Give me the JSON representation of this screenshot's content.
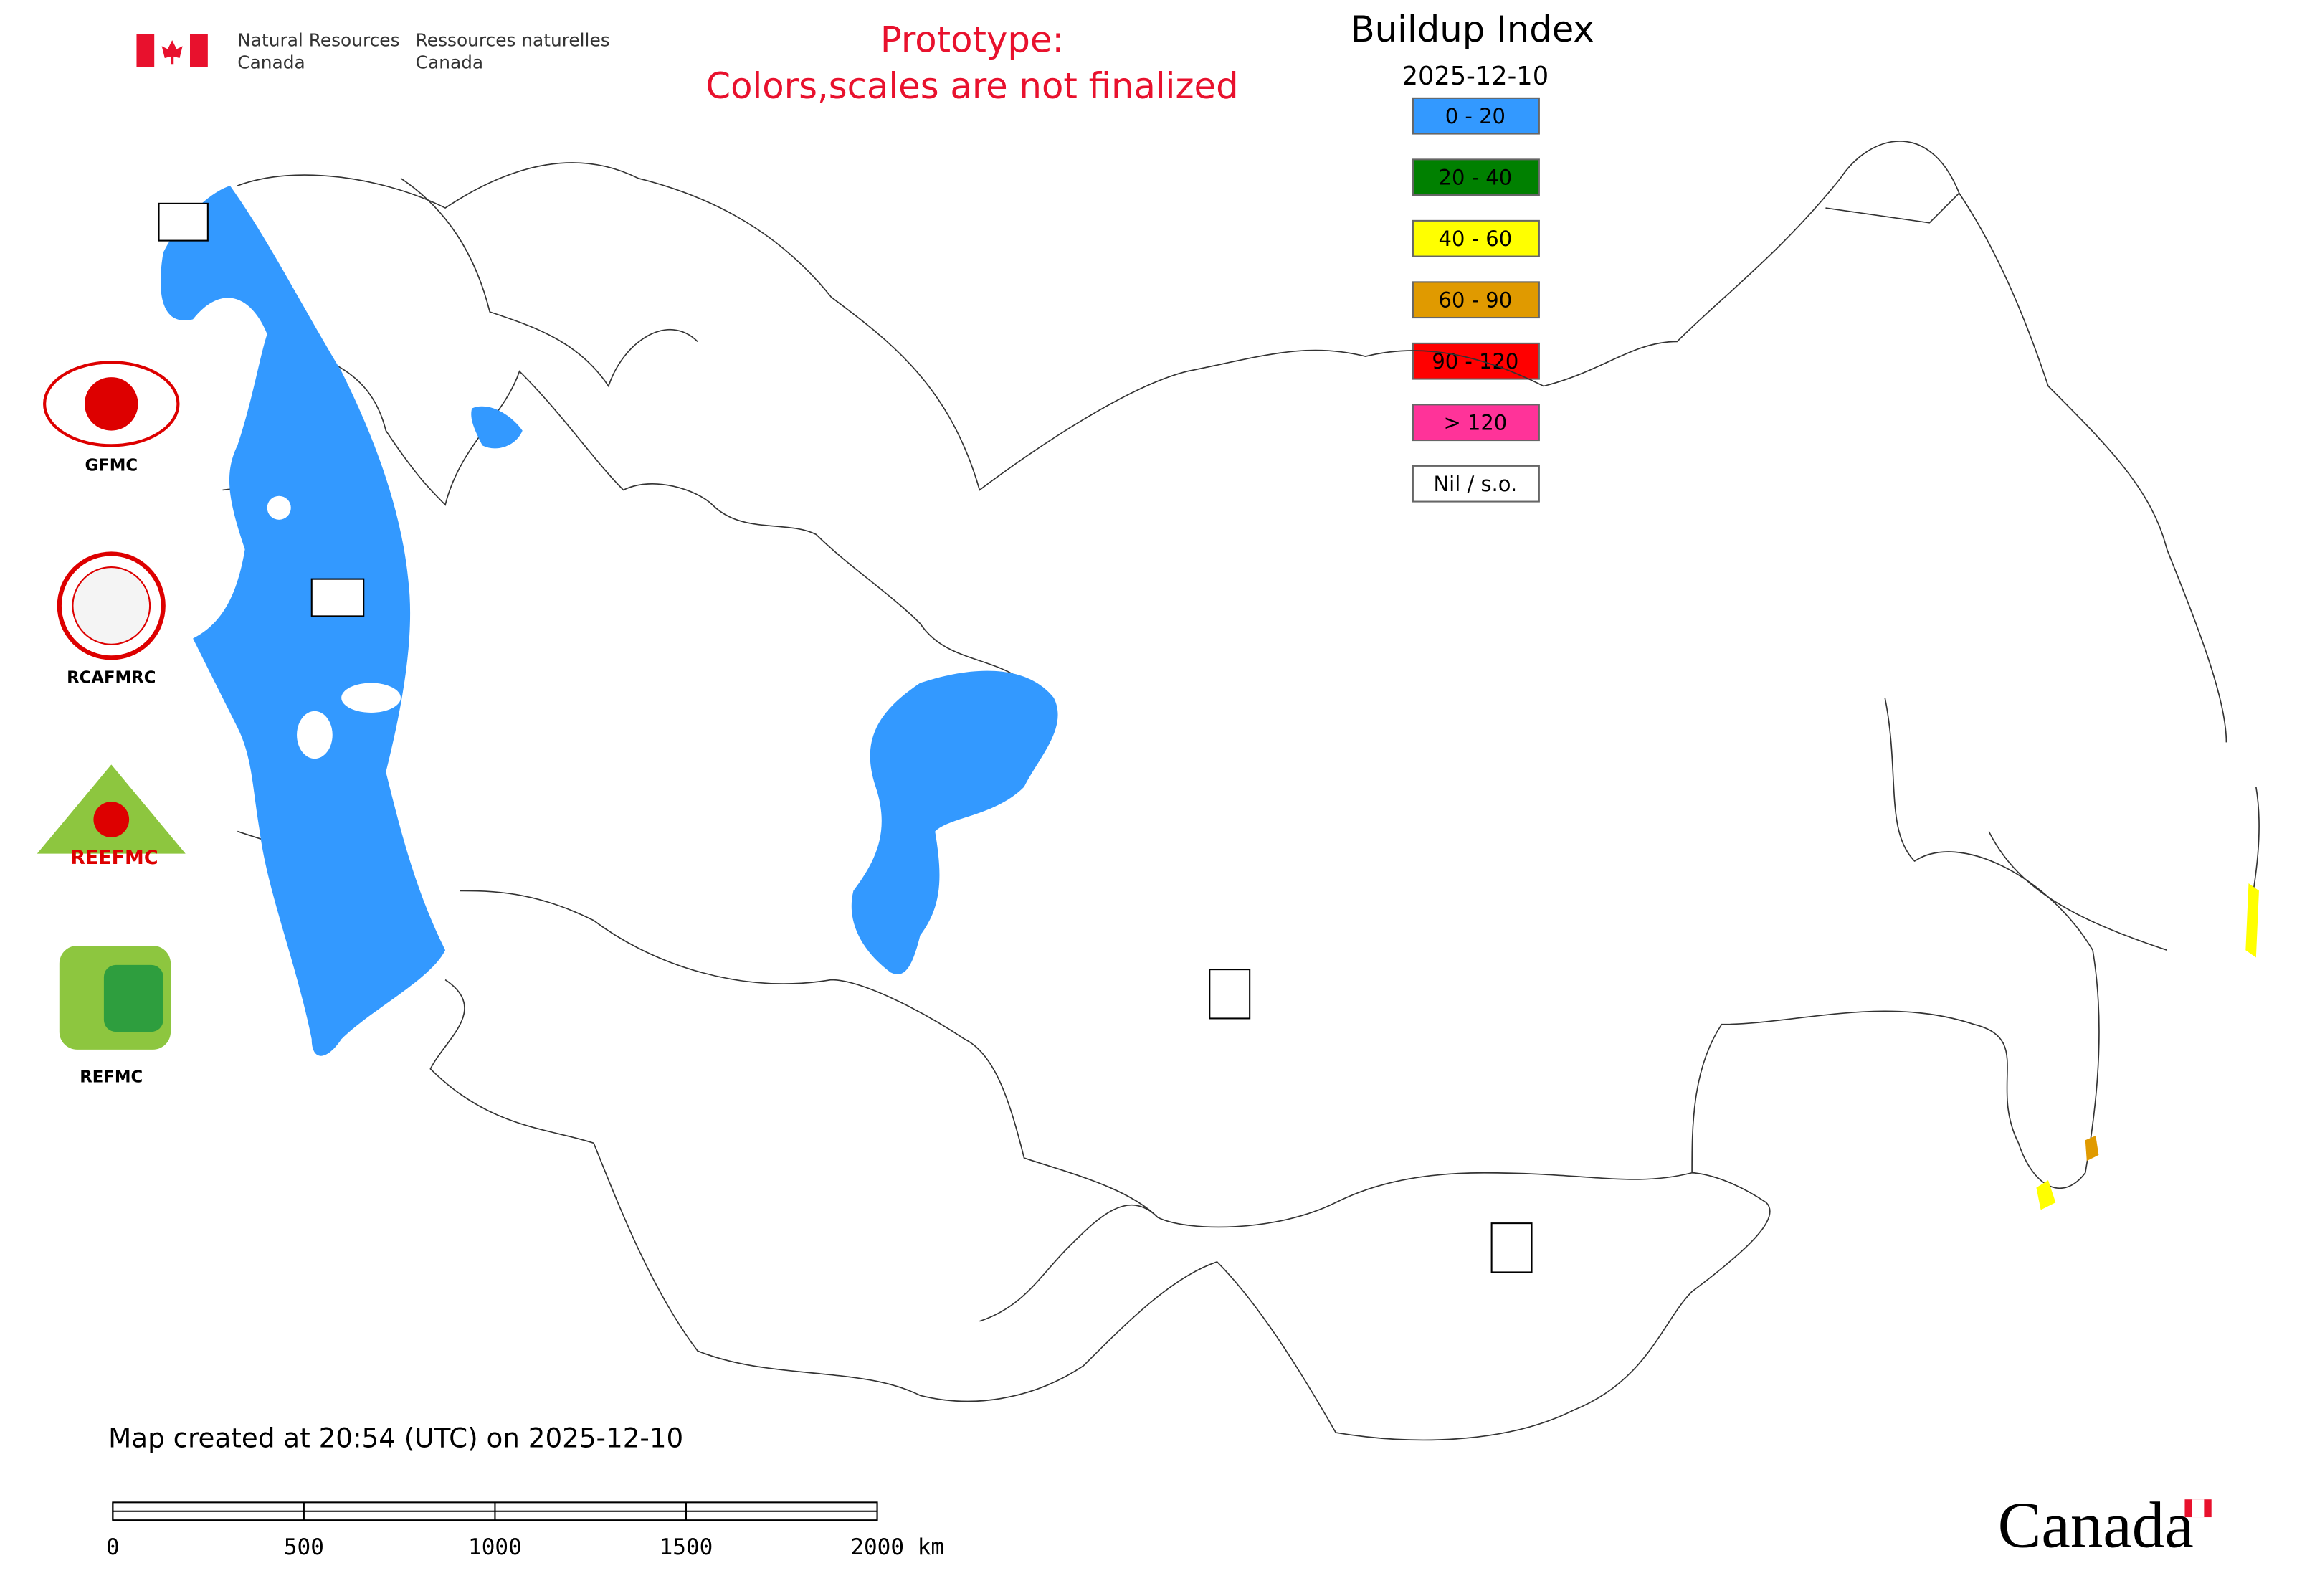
{
  "header": {
    "agency_en": [
      "Natural Resources",
      "Canada"
    ],
    "agency_fr": [
      "Ressources naturelles",
      "Canada"
    ],
    "notice": [
      "Prototype:",
      "Colors,scales are not finalized"
    ]
  },
  "legend": {
    "title": "Buildup Index",
    "date": "2025-12-10",
    "items": [
      {
        "label": "0 - 20",
        "color": "#3399ff"
      },
      {
        "label": "20 - 40",
        "color": "#008000"
      },
      {
        "label": "40 - 60",
        "color": "#ffff00"
      },
      {
        "label": "60 - 90",
        "color": "#e09a00"
      },
      {
        "label": "90 - 120",
        "color": "#ff0000"
      },
      {
        "label": "> 120",
        "color": "#ff3399"
      },
      {
        "label": "Nil / s.o.",
        "color": "#ffffff"
      }
    ]
  },
  "logos": [
    "GFMC",
    "RCAFMRC",
    "REEFMC",
    "REFMC"
  ],
  "footer": {
    "created": "Map created at 20:54 (UTC) on 2025-12-10",
    "scale_labels": [
      "0",
      "500",
      "1000",
      "1500",
      "2000 km"
    ],
    "wordmark": "Canada"
  }
}
